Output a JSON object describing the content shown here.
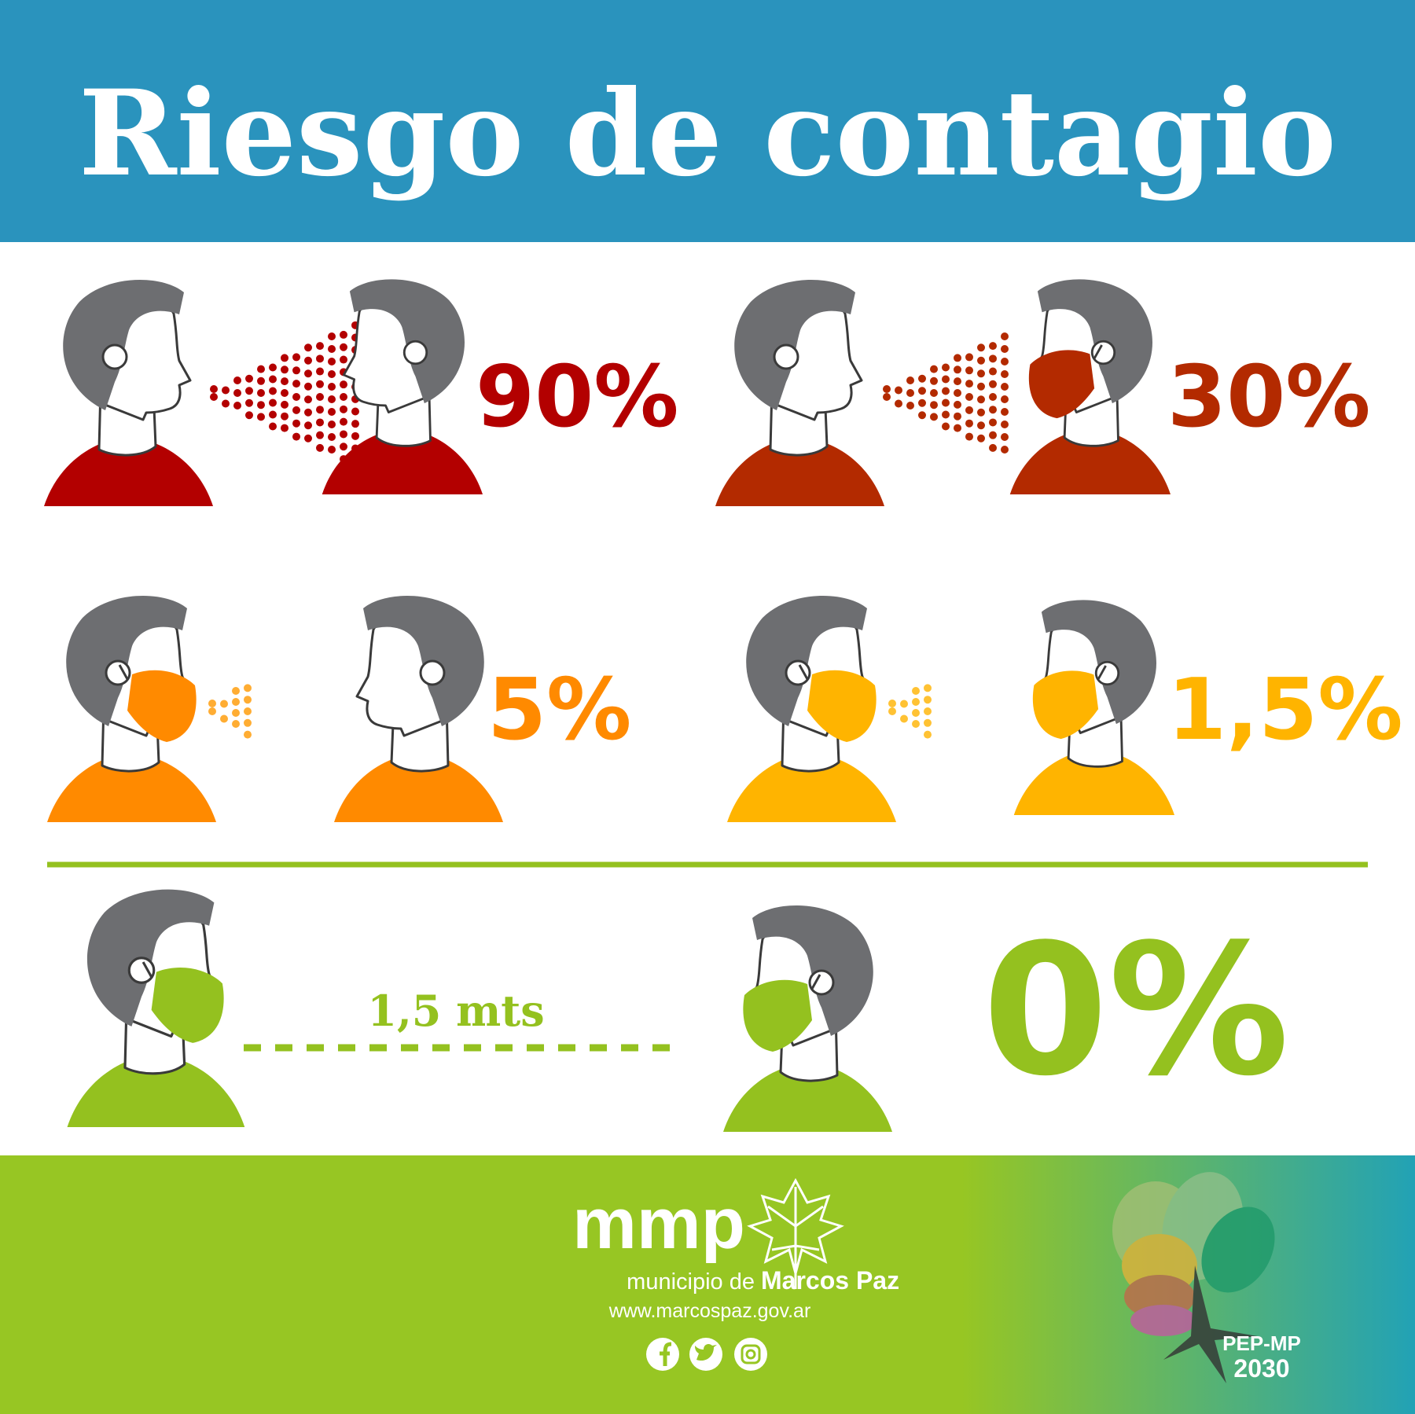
{
  "header": {
    "title": "Riesgo de contagio"
  },
  "scenarios": [
    {
      "risk": "90%"
    },
    {
      "risk": "30%"
    },
    {
      "risk": "5%"
    },
    {
      "risk": "1,5%"
    }
  ],
  "distance": {
    "label": "1,5 mts",
    "risk": "0%"
  },
  "footer": {
    "brand": "mmp",
    "municipality_prefix": "municipio de",
    "municipality_name": "Marcos Paz",
    "url": "www.marcospaz.gov.ar",
    "logo_line1": "PEP-MP",
    "logo_line2": "2030"
  }
}
